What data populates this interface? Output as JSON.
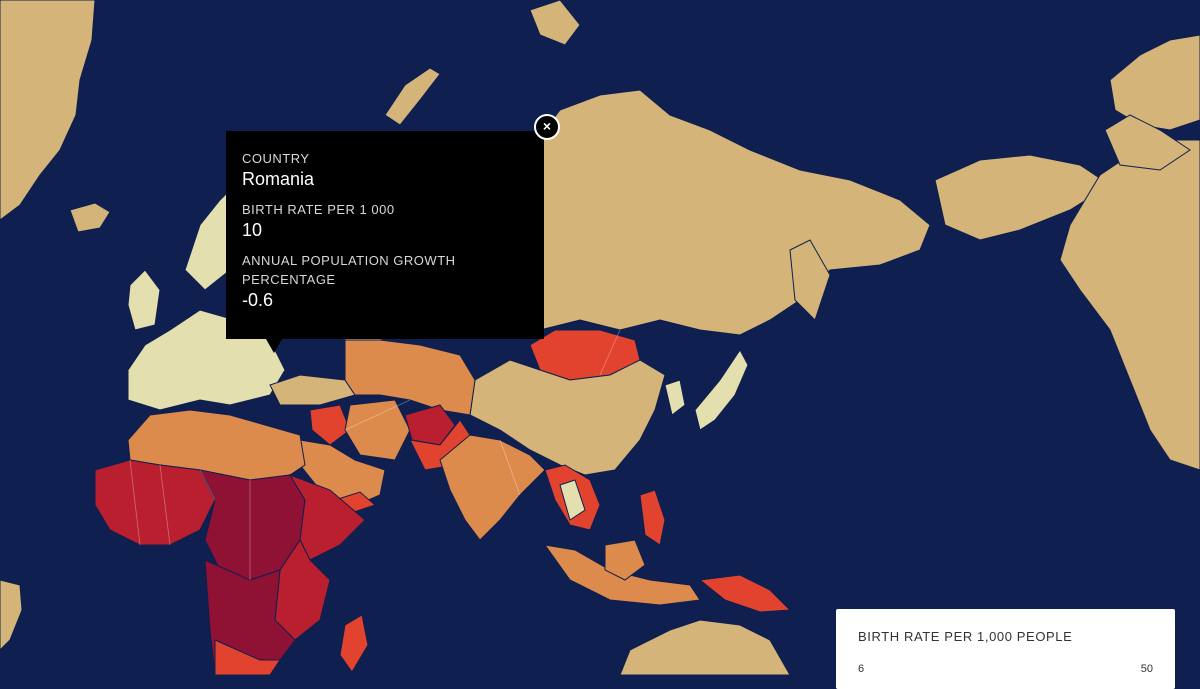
{
  "colors": {
    "ocean": "#0f1f4f",
    "land_default": "#d4b478",
    "low_rate": "#e4dfae",
    "mid_rate": "#dd8a4d",
    "high_rate": "#e1432f",
    "very_high_rate": "#b91f2e",
    "highest_rate": "#8f1235"
  },
  "tooltip": {
    "country_label": "COUNTRY",
    "country": "Romania",
    "birth_rate_label": "BIRTH RATE PER 1 000",
    "birth_rate": "10",
    "growth_label": "ANNUAL POPULATION GROWTH PERCENTAGE",
    "growth": "-0.6",
    "close_label": "×"
  },
  "legend": {
    "title": "BIRTH RATE PER 1,000 PEOPLE",
    "min": "6",
    "max": "50"
  }
}
